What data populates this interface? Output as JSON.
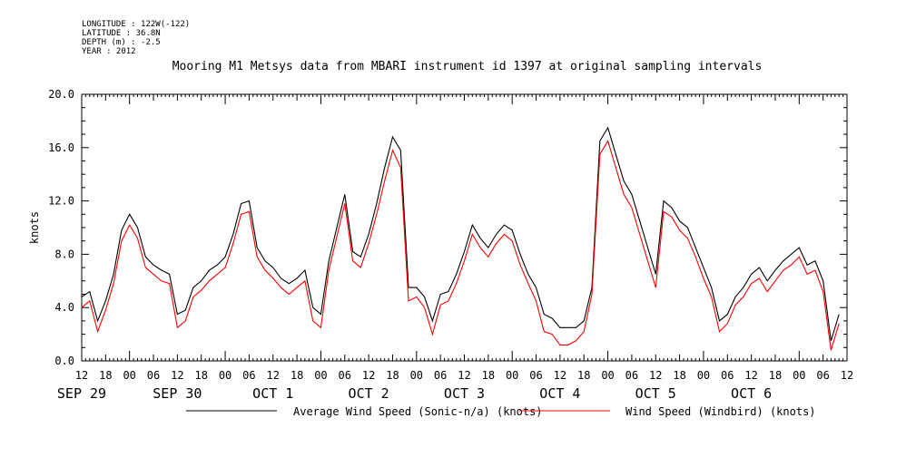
{
  "meta": {
    "longitude": "LONGITUDE : 122W(-122)",
    "latitude": "LATITUDE : 36.8N",
    "depth": "DEPTH (m) : -2.5",
    "year": "YEAR : 2012"
  },
  "chart_data": {
    "type": "line",
    "title": "Mooring M1 Metsys data from MBARI instrument id 1397 at original sampling intervals",
    "xlabel": "",
    "ylabel": "knots",
    "ylim": [
      0,
      20
    ],
    "yticks": [
      "0.0",
      "4.0",
      "8.0",
      "12.0",
      "16.0",
      "20.0"
    ],
    "xlim_hours": [
      -12,
      180
    ],
    "hour_tick_labels": [
      "12",
      "18",
      "00",
      "06",
      "12",
      "18",
      "00",
      "06",
      "12",
      "18",
      "00",
      "06",
      "12",
      "18",
      "00",
      "06",
      "12",
      "18",
      "00",
      "06",
      "12",
      "18",
      "00",
      "06",
      "12",
      "18",
      "00",
      "06",
      "12",
      "18",
      "00",
      "06",
      "12"
    ],
    "date_labels": [
      "SEP 29",
      "SEP 30",
      "OCT  1",
      "OCT  2",
      "OCT  3",
      "OCT  4",
      "OCT  5",
      "OCT  6"
    ],
    "grid": false,
    "legend_position": "bottom",
    "series": [
      {
        "name": "Average Wind Speed (Sonic-n/a) (knots)",
        "color": "#000000",
        "x_hours": [
          -12,
          -10,
          -8,
          -6,
          -4,
          -2,
          0,
          2,
          4,
          6,
          8,
          10,
          12,
          14,
          16,
          18,
          20,
          22,
          24,
          26,
          28,
          30,
          32,
          34,
          36,
          38,
          40,
          42,
          44,
          46,
          48,
          50,
          52,
          54,
          56,
          58,
          60,
          62,
          64,
          66,
          68,
          70,
          72,
          74,
          76,
          78,
          80,
          82,
          84,
          86,
          88,
          90,
          92,
          94,
          96,
          98,
          100,
          102,
          104,
          106,
          108,
          110,
          112,
          114,
          116,
          118,
          120,
          122,
          124,
          126,
          128,
          130,
          132,
          134,
          136,
          138,
          140,
          142,
          144,
          146,
          148,
          150,
          152,
          154,
          156,
          158,
          160,
          162,
          164,
          166,
          168,
          170,
          172,
          174,
          176,
          178
        ],
        "values": [
          4.8,
          5.2,
          3.0,
          4.5,
          6.5,
          9.8,
          11.0,
          10.0,
          7.8,
          7.2,
          6.8,
          6.5,
          3.5,
          3.8,
          5.5,
          6.0,
          6.8,
          7.2,
          7.8,
          9.5,
          11.8,
          12.0,
          8.5,
          7.5,
          7.0,
          6.2,
          5.8,
          6.2,
          6.8,
          4.0,
          3.5,
          7.5,
          10.0,
          12.5,
          8.2,
          7.8,
          9.5,
          11.8,
          14.5,
          16.8,
          15.8,
          5.5,
          5.5,
          4.8,
          3.0,
          5.0,
          5.2,
          6.5,
          8.2,
          10.2,
          9.2,
          8.5,
          9.5,
          10.2,
          9.8,
          8.0,
          6.5,
          5.5,
          3.5,
          3.2,
          2.5,
          2.5,
          2.5,
          3.0,
          5.5,
          16.5,
          17.5,
          15.5,
          13.5,
          12.5,
          10.5,
          8.5,
          6.5,
          12.0,
          11.5,
          10.5,
          10.0,
          8.5,
          7.0,
          5.5,
          3.0,
          3.5,
          4.8,
          5.5,
          6.5,
          7.0,
          6.0,
          6.8,
          7.5,
          8.0,
          8.5,
          7.2,
          7.5,
          6.0,
          1.5,
          3.5
        ]
      },
      {
        "name": "Wind Speed (Windbird) (knots)",
        "color": "#ff0000",
        "x_hours": [
          -12,
          -10,
          -8,
          -6,
          -4,
          -2,
          0,
          2,
          4,
          6,
          8,
          10,
          12,
          14,
          16,
          18,
          20,
          22,
          24,
          26,
          28,
          30,
          32,
          34,
          36,
          38,
          40,
          42,
          44,
          46,
          48,
          50,
          52,
          54,
          56,
          58,
          60,
          62,
          64,
          66,
          68,
          70,
          72,
          74,
          76,
          78,
          80,
          82,
          84,
          86,
          88,
          90,
          92,
          94,
          96,
          98,
          100,
          102,
          104,
          106,
          108,
          110,
          112,
          114,
          116,
          118,
          120,
          122,
          124,
          126,
          128,
          130,
          132,
          134,
          136,
          138,
          140,
          142,
          144,
          146,
          148,
          150,
          152,
          154,
          156,
          158,
          160,
          162,
          164,
          166,
          168,
          170,
          172,
          174,
          176,
          178
        ],
        "values": [
          4.0,
          4.5,
          2.2,
          3.8,
          5.8,
          9.0,
          10.2,
          9.2,
          7.0,
          6.5,
          6.0,
          5.8,
          2.5,
          3.0,
          4.8,
          5.3,
          6.0,
          6.5,
          7.0,
          8.8,
          11.0,
          11.2,
          7.8,
          6.8,
          6.2,
          5.5,
          5.0,
          5.5,
          6.0,
          3.0,
          2.5,
          6.8,
          9.3,
          11.8,
          7.5,
          7.0,
          8.8,
          11.0,
          13.5,
          15.8,
          14.5,
          4.5,
          4.8,
          4.0,
          2.0,
          4.2,
          4.5,
          5.8,
          7.5,
          9.5,
          8.5,
          7.8,
          8.8,
          9.5,
          9.0,
          7.2,
          5.8,
          4.5,
          2.2,
          2.0,
          1.2,
          1.2,
          1.5,
          2.2,
          5.0,
          15.5,
          16.5,
          14.5,
          12.5,
          11.5,
          9.5,
          7.5,
          5.5,
          11.2,
          10.8,
          9.8,
          9.2,
          7.8,
          6.2,
          4.8,
          2.2,
          2.8,
          4.2,
          4.8,
          5.8,
          6.2,
          5.2,
          6.0,
          6.8,
          7.2,
          7.8,
          6.5,
          6.8,
          5.2,
          0.8,
          2.8
        ]
      }
    ]
  }
}
